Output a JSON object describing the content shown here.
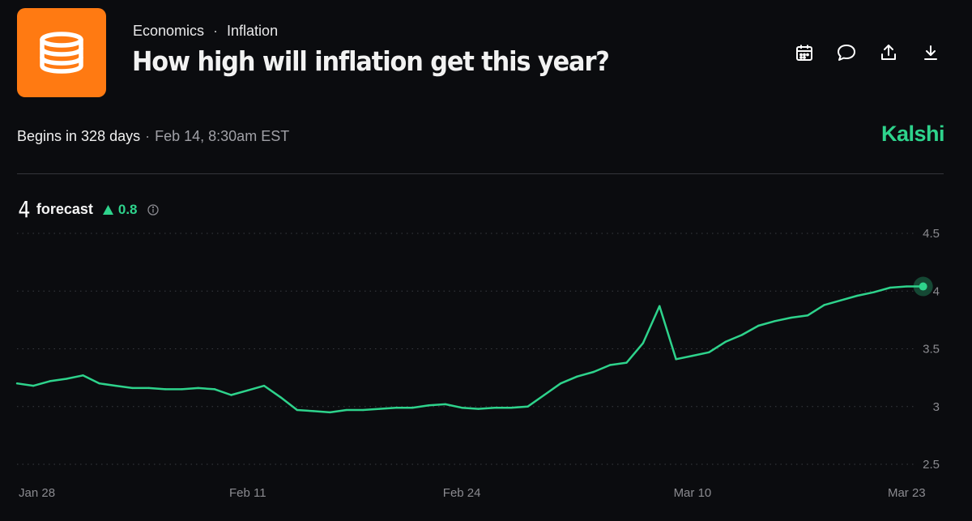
{
  "header": {
    "logo_icon": "database-stack-icon",
    "breadcrumb": [
      "Economics",
      "Inflation"
    ],
    "breadcrumb_sep": "·",
    "title": "How high will inflation get this year?"
  },
  "actions": [
    {
      "name": "calendar-icon"
    },
    {
      "name": "comment-icon"
    },
    {
      "name": "share-upload-icon"
    },
    {
      "name": "download-icon"
    }
  ],
  "status": {
    "begins": "Begins in 328 days",
    "separator": "·",
    "when": "Feb 14, 8:30am EST"
  },
  "brand": "Kalshi",
  "forecast": {
    "value": "4",
    "label": "forecast",
    "change": "0.8",
    "change_icon": "triangle-up-icon",
    "info_icon": "info-icon"
  },
  "colors": {
    "accent": "#2ed38c",
    "logo_bg": "#ff7a12",
    "background": "#0b0c0f"
  },
  "chart_data": {
    "type": "line",
    "x_start": "Jan 28",
    "x_end": "Mar 25",
    "xticks": [
      "Jan 28",
      "Feb 11",
      "Feb 24",
      "Mar 10",
      "Mar 23"
    ],
    "yticks": [
      "4.5",
      "4",
      "3.5",
      "3",
      "2.5"
    ],
    "ylim": [
      2.5,
      4.5
    ],
    "grid": true,
    "series": [
      {
        "x": [
          "Jan 28",
          "Jan 29",
          "Jan 30",
          "Jan 31",
          "Feb 1",
          "Feb 2",
          "Feb 3",
          "Feb 4",
          "Feb 5",
          "Feb 6",
          "Feb 7",
          "Feb 8",
          "Feb 9",
          "Feb 10",
          "Feb 11",
          "Feb 12",
          "Feb 13",
          "Feb 14",
          "Feb 15",
          "Feb 16",
          "Feb 17",
          "Feb 18",
          "Feb 19",
          "Feb 20",
          "Feb 21",
          "Feb 22",
          "Feb 23",
          "Feb 24",
          "Feb 25",
          "Feb 26",
          "Feb 27",
          "Feb 28",
          "Mar 1",
          "Mar 2",
          "Mar 3",
          "Mar 4",
          "Mar 5",
          "Mar 6",
          "Mar 7",
          "Mar 8",
          "Mar 9",
          "Mar 10",
          "Mar 11",
          "Mar 12",
          "Mar 13",
          "Mar 14",
          "Mar 15",
          "Mar 16",
          "Mar 17",
          "Mar 18",
          "Mar 19",
          "Mar 20",
          "Mar 21",
          "Mar 22",
          "Mar 23",
          "Mar 24"
        ],
        "values": [
          3.2,
          3.18,
          3.22,
          3.24,
          3.27,
          3.2,
          3.18,
          3.16,
          3.16,
          3.15,
          3.15,
          3.16,
          3.15,
          3.1,
          3.14,
          3.18,
          3.08,
          2.97,
          2.96,
          2.95,
          2.97,
          2.97,
          2.98,
          2.99,
          2.99,
          3.01,
          3.02,
          2.99,
          2.98,
          2.99,
          2.99,
          3.0,
          3.1,
          3.2,
          3.26,
          3.3,
          3.36,
          3.38,
          3.55,
          3.87,
          3.41,
          3.44,
          3.47,
          3.56,
          3.62,
          3.7,
          3.74,
          3.77,
          3.79,
          3.88,
          3.92,
          3.96,
          3.99,
          4.03,
          4.04,
          4.04
        ]
      }
    ]
  }
}
